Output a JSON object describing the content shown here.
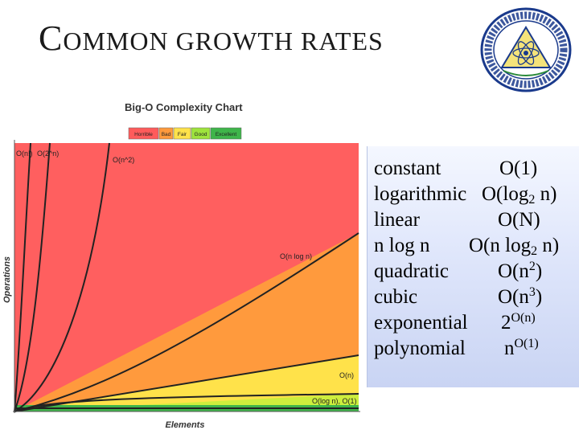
{
  "slide": {
    "title_initial": "C",
    "title_rest": "OMMON GROWTH RATES"
  },
  "chart": {
    "title": "Big-O Complexity Chart",
    "xlabel": "Elements",
    "ylabel": "Operations",
    "legend": [
      {
        "label": "Horrible",
        "color": "#ff5b5b"
      },
      {
        "label": "Bad",
        "color": "#ff9a3d"
      },
      {
        "label": "Fair",
        "color": "#ffe24a"
      },
      {
        "label": "Good",
        "color": "#9ee33d"
      },
      {
        "label": "Excellent",
        "color": "#3fb54a"
      }
    ],
    "curve_labels": {
      "factorial": "O(n!)",
      "exponential": "O(2^n)",
      "quadratic": "O(n^2)",
      "nlogn": "O(n log n)",
      "linear": "O(n)",
      "log_const": "O(log n), O(1)"
    }
  },
  "rates": [
    {
      "name": "constant",
      "base": "O(1)",
      "sub": "",
      "after_sub": "",
      "sup": ""
    },
    {
      "name": "logarithmic",
      "base": "O(log",
      "sub": "2",
      "after_sub": " n)",
      "sup": ""
    },
    {
      "name": "linear",
      "base": "O(N)",
      "sub": "",
      "after_sub": "",
      "sup": ""
    },
    {
      "name": "n log n",
      "base": "O(n log",
      "sub": "2",
      "after_sub": " n)",
      "sup": ""
    },
    {
      "name": "quadratic",
      "base": "O(n",
      "sub": "",
      "after_sub": "",
      "sup": "2",
      "tail": ")"
    },
    {
      "name": "cubic",
      "base": "O(n",
      "sub": "",
      "after_sub": "",
      "sup": "3",
      "tail": ")"
    },
    {
      "name": "exponential",
      "base": "2",
      "sub": "",
      "after_sub": "",
      "sup": "O(n)"
    },
    {
      "name": "polynomial",
      "base": "n",
      "sub": "",
      "after_sub": "",
      "sup": "O(1)"
    }
  ]
}
